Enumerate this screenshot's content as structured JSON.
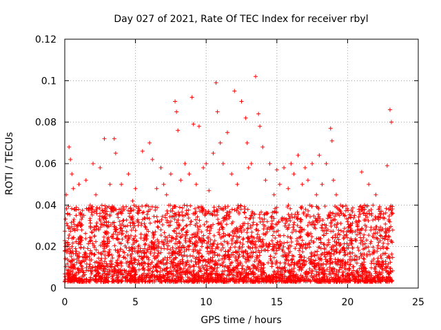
{
  "chart_data": {
    "type": "scatter",
    "title": "Day 027 of 2021, Rate Of TEC Index for receiver rbyl",
    "xlabel": "GPS time / hours",
    "ylabel": "ROTI / TECUs",
    "xlim": [
      0,
      25
    ],
    "ylim": [
      0,
      0.12
    ],
    "xticks": [
      0,
      5,
      10,
      15,
      20,
      25
    ],
    "xtick_labels": [
      "0",
      "5",
      "10",
      "15",
      "20",
      "25"
    ],
    "yticks": [
      0,
      0.02,
      0.04,
      0.06,
      0.08,
      0.1,
      0.12
    ],
    "ytick_labels": [
      "0",
      "0.02",
      "0.04",
      "0.06",
      "0.08",
      "0.1",
      "0.12"
    ],
    "grid": true,
    "marker": "+",
    "series": [
      {
        "name": "ROTI",
        "color": "#ff0000",
        "x": [
          0.1,
          0.3,
          0.4,
          0.5,
          0.6,
          1.0,
          1.5,
          2.0,
          2.5,
          2.8,
          3.5,
          3.6,
          4.0,
          4.5,
          5.0,
          5.5,
          6.0,
          6.2,
          6.8,
          7.5,
          7.8,
          7.9,
          8.0,
          8.5,
          9.0,
          9.1,
          9.5,
          10.0,
          10.5,
          10.7,
          10.8,
          11.0,
          11.5,
          12.0,
          12.5,
          12.8,
          12.9,
          13.5,
          13.7,
          13.8,
          14.0,
          14.5,
          15.0,
          15.5,
          16.0,
          16.5,
          17.0,
          17.5,
          18.0,
          18.5,
          18.8,
          18.9,
          19.0,
          19.5,
          20.0,
          20.5,
          21.0,
          21.5,
          21.8,
          22.0,
          22.5,
          22.8,
          23.0,
          23.1,
          0.2,
          0.8,
          1.2,
          1.8,
          2.2,
          3.0,
          3.2,
          4.2,
          4.8,
          5.2,
          5.8,
          6.5,
          7.0,
          7.2,
          8.2,
          8.8,
          9.3,
          9.8,
          10.2,
          11.2,
          11.8,
          12.2,
          13.0,
          13.2,
          14.2,
          14.8,
          15.2,
          15.8,
          16.2,
          16.8,
          17.2,
          17.8,
          18.2,
          19.2,
          19.8,
          20.2,
          20.8,
          21.2,
          22.2,
          22.7
        ],
        "y": [
          0.045,
          0.068,
          0.062,
          0.055,
          0.048,
          0.05,
          0.052,
          0.06,
          0.058,
          0.072,
          0.072,
          0.065,
          0.05,
          0.055,
          0.048,
          0.066,
          0.07,
          0.062,
          0.058,
          0.055,
          0.09,
          0.085,
          0.076,
          0.06,
          0.092,
          0.079,
          0.078,
          0.06,
          0.065,
          0.099,
          0.085,
          0.07,
          0.075,
          0.095,
          0.09,
          0.082,
          0.07,
          0.102,
          0.084,
          0.078,
          0.068,
          0.06,
          0.057,
          0.058,
          0.06,
          0.064,
          0.058,
          0.06,
          0.064,
          0.06,
          0.077,
          0.071,
          0.052,
          0.04,
          0.032,
          0.035,
          0.056,
          0.05,
          0.04,
          0.045,
          0.02,
          0.059,
          0.086,
          0.08,
          0.03,
          0.035,
          0.028,
          0.04,
          0.045,
          0.03,
          0.05,
          0.038,
          0.042,
          0.036,
          0.04,
          0.048,
          0.05,
          0.045,
          0.052,
          0.055,
          0.05,
          0.058,
          0.047,
          0.06,
          0.055,
          0.05,
          0.058,
          0.06,
          0.052,
          0.045,
          0.05,
          0.048,
          0.055,
          0.05,
          0.052,
          0.045,
          0.05,
          0.045,
          0.035,
          0.03,
          0.038,
          0.04,
          0.022,
          0.025
        ],
        "bulk_band": {
          "description": "dense cloud of points filling roughly 0.003-0.04 ROTI across 0 to 23.2 hours",
          "x_range": [
            0,
            23.2
          ],
          "y_range": [
            0.003,
            0.04
          ]
        }
      }
    ]
  }
}
